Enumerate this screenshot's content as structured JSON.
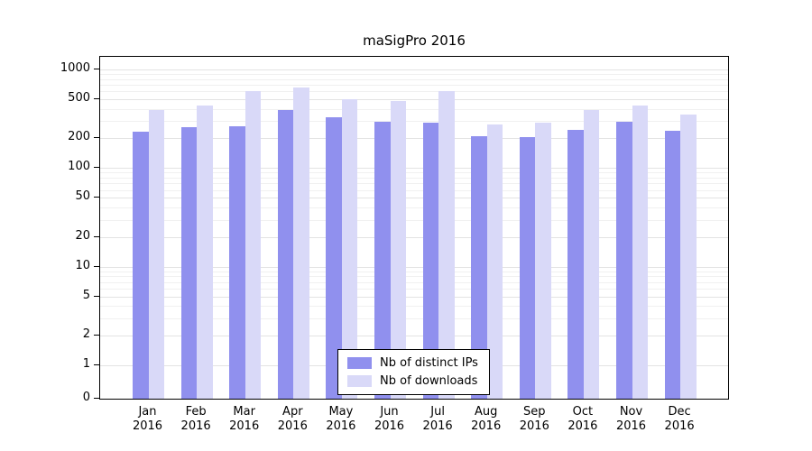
{
  "chart_data": {
    "type": "bar",
    "title": "maSigPro 2016",
    "categories": [
      "Jan",
      "Feb",
      "Mar",
      "Apr",
      "May",
      "Jun",
      "Jul",
      "Aug",
      "Sep",
      "Oct",
      "Nov",
      "Dec"
    ],
    "x_sub_label": "2016",
    "series": [
      {
        "name": "Nb of distinct IPs",
        "color": "#9090ee",
        "values": [
          235,
          262,
          268,
          385,
          330,
          298,
          288,
          212,
          205,
          242,
          296,
          238
        ]
      },
      {
        "name": "Nb of downloads",
        "color": "#d9d9f8",
        "values": [
          390,
          432,
          610,
          662,
          498,
          478,
          608,
          278,
          288,
          392,
          428,
          352
        ]
      }
    ],
    "xlabel": "",
    "ylabel": "",
    "yscale": "log",
    "ylim": [
      0,
      1000
    ],
    "yticks": [
      0,
      1,
      2,
      5,
      10,
      20,
      50,
      100,
      200,
      500,
      1000
    ],
    "grid": "horizontal-log-minor",
    "legend_position": "bottom-center-inside"
  }
}
